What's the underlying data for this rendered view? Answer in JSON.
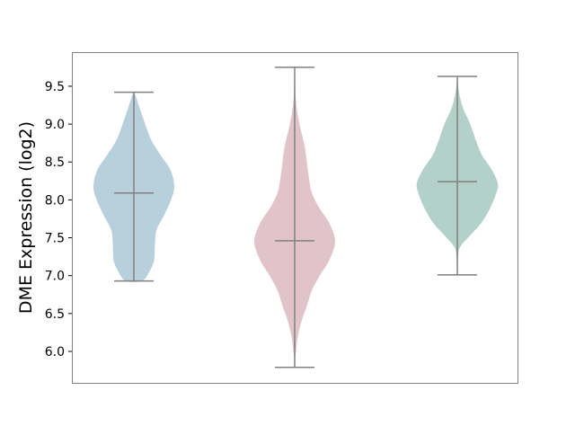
{
  "chart_data": {
    "type": "violin",
    "title": "",
    "xlabel": "",
    "ylabel": "DME Expression (log2)",
    "ylim": [
      5.585,
      9.95
    ],
    "yticks": [
      "6.0",
      "6.5",
      "7.0",
      "7.5",
      "8.0",
      "8.5",
      "9.0",
      "9.5"
    ],
    "grid": false,
    "line_color": "#808080",
    "series": [
      {
        "color": "#b7d0dc",
        "min": 6.93,
        "max": 9.42,
        "median": 8.09,
        "density": [
          [
            6.93,
            0.2
          ],
          [
            7.05,
            0.38
          ],
          [
            7.2,
            0.5
          ],
          [
            7.4,
            0.52
          ],
          [
            7.6,
            0.56
          ],
          [
            7.8,
            0.75
          ],
          [
            8.0,
            0.92
          ],
          [
            8.18,
            1.0
          ],
          [
            8.4,
            0.9
          ],
          [
            8.6,
            0.65
          ],
          [
            8.8,
            0.42
          ],
          [
            9.0,
            0.28
          ],
          [
            9.2,
            0.15
          ],
          [
            9.35,
            0.06
          ],
          [
            9.42,
            0
          ]
        ]
      },
      {
        "color": "#e0c4ca",
        "min": 5.79,
        "max": 9.75,
        "median": 7.46,
        "density": [
          [
            5.79,
            0
          ],
          [
            6.0,
            0.03
          ],
          [
            6.2,
            0.08
          ],
          [
            6.4,
            0.17
          ],
          [
            6.6,
            0.3
          ],
          [
            6.8,
            0.42
          ],
          [
            7.0,
            0.62
          ],
          [
            7.2,
            0.85
          ],
          [
            7.45,
            1.0
          ],
          [
            7.7,
            0.85
          ],
          [
            7.9,
            0.6
          ],
          [
            8.1,
            0.42
          ],
          [
            8.3,
            0.35
          ],
          [
            8.5,
            0.3
          ],
          [
            8.7,
            0.25
          ],
          [
            9.0,
            0.12
          ],
          [
            9.3,
            0.03
          ],
          [
            9.75,
            0
          ]
        ]
      },
      {
        "color": "#b3d1c8",
        "min": 7.01,
        "max": 9.63,
        "median": 8.24,
        "density": [
          [
            7.01,
            0
          ],
          [
            7.3,
            0.03
          ],
          [
            7.4,
            0.1
          ],
          [
            7.55,
            0.35
          ],
          [
            7.7,
            0.6
          ],
          [
            7.9,
            0.82
          ],
          [
            8.1,
            0.97
          ],
          [
            8.22,
            1.0
          ],
          [
            8.4,
            0.85
          ],
          [
            8.6,
            0.6
          ],
          [
            8.8,
            0.45
          ],
          [
            9.0,
            0.32
          ],
          [
            9.2,
            0.15
          ],
          [
            9.4,
            0.05
          ],
          [
            9.63,
            0
          ]
        ]
      }
    ]
  }
}
